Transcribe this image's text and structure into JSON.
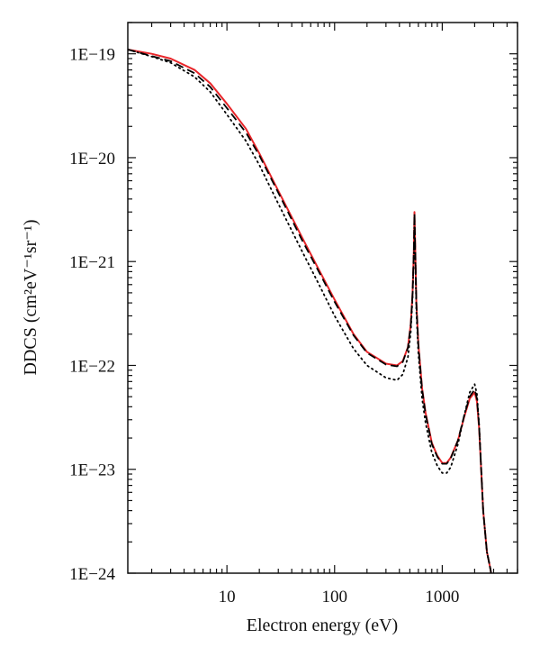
{
  "chart_data": {
    "type": "line",
    "title": "",
    "xlabel": "Electron energy (eV)",
    "ylabel": "DDCS (cm²eV⁻¹sr⁻¹)",
    "xscale": "log",
    "yscale": "log",
    "xlim": [
      1.2,
      5000
    ],
    "ylim": [
      1e-24,
      2e-19
    ],
    "grid": false,
    "legend": "none",
    "x_ticks": [
      {
        "value": 10,
        "label": "10"
      },
      {
        "value": 100,
        "label": "100"
      },
      {
        "value": 1000,
        "label": "1000"
      }
    ],
    "y_ticks": [
      {
        "value": 1e-19,
        "label": "1E−19"
      },
      {
        "value": 1e-20,
        "label": "1E−20"
      },
      {
        "value": 1e-21,
        "label": "1E−21"
      },
      {
        "value": 1e-22,
        "label": "1E−22"
      },
      {
        "value": 1e-23,
        "label": "1E−23"
      },
      {
        "value": 1e-24,
        "label": "1E−24"
      }
    ],
    "series": [
      {
        "color": "#e8262a",
        "style": "solid",
        "x": [
          1.2,
          2,
          3,
          5,
          7,
          10,
          15,
          20,
          30,
          50,
          70,
          100,
          150,
          200,
          300,
          380,
          430,
          480,
          510,
          530,
          545,
          552,
          560,
          575,
          600,
          650,
          700,
          800,
          900,
          1000,
          1100,
          1200,
          1400,
          1600,
          1800,
          2000,
          2100,
          2200,
          2400,
          2600,
          2800,
          3000
        ],
        "y": [
          1.1e-19,
          1e-19,
          9e-20,
          7e-20,
          5.2e-20,
          3.3e-20,
          1.9e-20,
          1.1e-20,
          4.8e-21,
          1.7e-21,
          8.7e-22,
          4.3e-22,
          2e-22,
          1.35e-22,
          1.04e-22,
          1e-22,
          1.1e-22,
          1.5e-22,
          2.5e-22,
          5e-22,
          1.3e-21,
          3e-21,
          1.5e-21,
          4e-22,
          1.6e-22,
          6e-23,
          3.5e-23,
          1.8e-23,
          1.35e-23,
          1.15e-23,
          1.15e-23,
          1.3e-23,
          1.9e-23,
          3.2e-23,
          4.8e-23,
          5.5e-23,
          4.5e-23,
          2.5e-23,
          4e-24,
          1.6e-24,
          1.1e-24,
          7e-25
        ]
      },
      {
        "color": "#000000",
        "style": "dashed",
        "x": [
          1.2,
          2,
          3,
          5,
          7,
          10,
          15,
          20,
          30,
          50,
          70,
          100,
          150,
          200,
          300,
          380,
          430,
          480,
          510,
          530,
          545,
          552,
          560,
          575,
          600,
          650,
          700,
          800,
          900,
          1000,
          1100,
          1200,
          1400,
          1600,
          1800,
          2000,
          2100,
          2200,
          2400,
          2600,
          2800,
          3000
        ],
        "y": [
          1.1e-19,
          9.5e-20,
          8.5e-20,
          6.5e-20,
          4.8e-20,
          3e-20,
          1.75e-20,
          1.05e-20,
          4.6e-21,
          1.6e-21,
          8.3e-22,
          4.1e-22,
          1.95e-22,
          1.32e-22,
          1.02e-22,
          9.8e-23,
          1.08e-22,
          1.48e-22,
          2.45e-22,
          4.9e-22,
          1.3e-21,
          2.9e-21,
          1.45e-21,
          3.9e-22,
          1.55e-22,
          5.9e-23,
          3.4e-23,
          1.75e-23,
          1.32e-23,
          1.13e-23,
          1.13e-23,
          1.28e-23,
          1.9e-23,
          3.3e-23,
          5e-23,
          5.9e-23,
          4.8e-23,
          2.6e-23,
          4e-24,
          1.6e-24,
          1.1e-24,
          7e-25
        ]
      },
      {
        "color": "#000000",
        "style": "dotted",
        "x": [
          1.2,
          2,
          3,
          5,
          7,
          10,
          15,
          20,
          30,
          50,
          70,
          100,
          150,
          200,
          300,
          380,
          430,
          480,
          510,
          530,
          545,
          552,
          560,
          575,
          600,
          650,
          700,
          800,
          900,
          1000,
          1100,
          1200,
          1400,
          1600,
          1800,
          2000,
          2100,
          2200,
          2400,
          2600,
          2800,
          3000
        ],
        "y": [
          1.1e-19,
          9.4e-20,
          8.2e-20,
          6e-20,
          4.3e-20,
          2.6e-20,
          1.45e-20,
          8.5e-21,
          3.6e-21,
          1.25e-21,
          6.3e-22,
          3e-22,
          1.45e-22,
          1e-22,
          7.6e-23,
          7.2e-23,
          8.2e-23,
          1.2e-22,
          2.1e-22,
          4.5e-22,
          1.2e-21,
          2.6e-21,
          1.3e-21,
          3.3e-22,
          1.3e-22,
          4.8e-23,
          2.8e-23,
          1.45e-23,
          1.08e-23,
          9.2e-24,
          9.2e-24,
          1.05e-23,
          1.75e-23,
          3.3e-23,
          5.5e-23,
          6.6e-23,
          5.3e-23,
          2.7e-23,
          4e-24,
          1.6e-24,
          1.1e-24,
          7e-25
        ]
      }
    ]
  }
}
